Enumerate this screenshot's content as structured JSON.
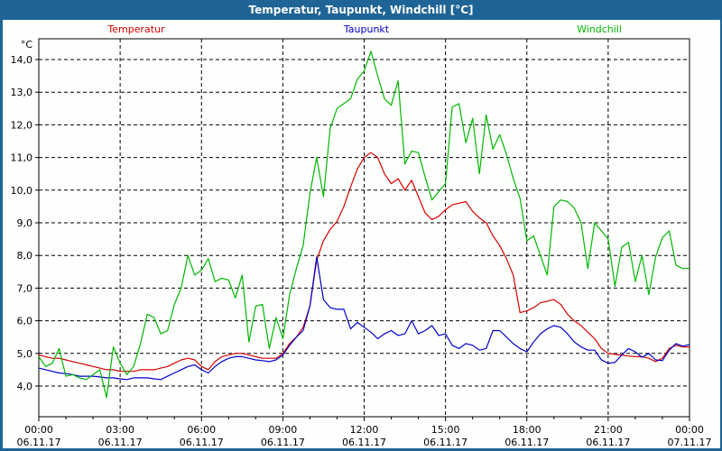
{
  "window": {
    "title": "Temperatur, Taupunkt, Windchill [°C]"
  },
  "colors": {
    "frame_blue": "#1e6496",
    "temperatur": "#d80000",
    "taupunkt": "#0000cd",
    "windchill": "#00b800",
    "axis": "#000000"
  },
  "chart_data": {
    "type": "line",
    "title": "Temperatur, Taupunkt, Windchill [°C]",
    "unit": "°C",
    "start_time": "00:00 06.11.17",
    "end_time": "00:00 07.11.17",
    "interval_minutes": 15,
    "ylim": [
      4,
      14
    ],
    "grid": "dashed",
    "legend_position": "top",
    "y_ticks": [
      {
        "value": 4,
        "label": "4,0"
      },
      {
        "value": 5,
        "label": "5,0"
      },
      {
        "value": 6,
        "label": "6,0"
      },
      {
        "value": 7,
        "label": "7,0"
      },
      {
        "value": 8,
        "label": "8,0"
      },
      {
        "value": 9,
        "label": "9,0"
      },
      {
        "value": 10,
        "label": "10,0"
      },
      {
        "value": 11,
        "label": "11,0"
      },
      {
        "value": 12,
        "label": "12,0"
      },
      {
        "value": 13,
        "label": "13,0"
      },
      {
        "value": 14,
        "label": "14,0"
      }
    ],
    "x_ticks": [
      {
        "hour": 0,
        "time": "00:00",
        "date": "06.11.17"
      },
      {
        "hour": 3,
        "time": "03:00",
        "date": "06.11.17"
      },
      {
        "hour": 6,
        "time": "06:00",
        "date": "06.11.17"
      },
      {
        "hour": 9,
        "time": "09:00",
        "date": "06.11.17"
      },
      {
        "hour": 12,
        "time": "12:00",
        "date": "06.11.17"
      },
      {
        "hour": 15,
        "time": "15:00",
        "date": "06.11.17"
      },
      {
        "hour": 18,
        "time": "18:00",
        "date": "06.11.17"
      },
      {
        "hour": 21,
        "time": "21:00",
        "date": "06.11.17"
      },
      {
        "hour": 24,
        "time": "00:00",
        "date": "07.11.17"
      }
    ],
    "series": [
      {
        "name": "Temperatur",
        "color": "#d80000",
        "values": [
          4.95,
          4.9,
          4.85,
          4.85,
          4.8,
          4.75,
          4.7,
          4.65,
          4.6,
          4.55,
          4.5,
          4.5,
          4.45,
          4.45,
          4.45,
          4.5,
          4.5,
          4.5,
          4.55,
          4.6,
          4.7,
          4.8,
          4.85,
          4.8,
          4.6,
          4.5,
          4.75,
          4.9,
          4.95,
          5.0,
          5.0,
          4.95,
          4.9,
          4.85,
          4.85,
          4.85,
          5.0,
          5.3,
          5.5,
          5.8,
          6.45,
          7.85,
          8.45,
          8.8,
          9.05,
          9.5,
          10.1,
          10.65,
          11.0,
          11.15,
          11.0,
          10.5,
          10.2,
          10.35,
          10.0,
          10.3,
          9.8,
          9.3,
          9.1,
          9.2,
          9.4,
          9.55,
          9.6,
          9.65,
          9.35,
          9.15,
          9.0,
          8.6,
          8.3,
          7.9,
          7.4,
          6.25,
          6.3,
          6.4,
          6.55,
          6.6,
          6.65,
          6.5,
          6.2,
          6.0,
          5.85,
          5.65,
          5.45,
          5.15,
          5.0,
          4.97,
          4.95,
          4.92,
          4.9,
          4.9,
          4.85,
          4.75,
          4.85,
          5.15,
          5.25,
          5.2,
          5.2
        ]
      },
      {
        "name": "Taupunkt",
        "color": "#0000cd",
        "values": [
          4.55,
          4.5,
          4.45,
          4.4,
          4.38,
          4.35,
          4.3,
          4.3,
          4.3,
          4.28,
          4.25,
          4.25,
          4.22,
          4.2,
          4.25,
          4.25,
          4.25,
          4.22,
          4.2,
          4.3,
          4.4,
          4.5,
          4.6,
          4.65,
          4.5,
          4.4,
          4.6,
          4.75,
          4.85,
          4.9,
          4.9,
          4.85,
          4.8,
          4.78,
          4.75,
          4.8,
          4.95,
          5.25,
          5.5,
          5.7,
          6.45,
          7.95,
          6.65,
          6.4,
          6.35,
          6.35,
          5.75,
          5.95,
          5.8,
          5.65,
          5.45,
          5.6,
          5.7,
          5.55,
          5.6,
          6.0,
          5.6,
          5.7,
          5.85,
          5.55,
          5.6,
          5.25,
          5.15,
          5.3,
          5.25,
          5.1,
          5.15,
          5.7,
          5.7,
          5.5,
          5.3,
          5.15,
          5.05,
          5.35,
          5.6,
          5.75,
          5.85,
          5.8,
          5.6,
          5.35,
          5.2,
          5.1,
          5.1,
          4.8,
          4.7,
          4.72,
          4.95,
          5.15,
          5.05,
          4.88,
          5.0,
          4.8,
          4.78,
          5.1,
          5.3,
          5.22,
          5.27
        ]
      },
      {
        "name": "Windchill",
        "color": "#00b800",
        "values": [
          4.9,
          4.6,
          4.7,
          5.15,
          4.3,
          4.35,
          4.25,
          4.2,
          4.35,
          4.5,
          3.65,
          5.2,
          4.7,
          4.35,
          4.6,
          5.3,
          6.2,
          6.1,
          5.6,
          5.7,
          6.5,
          7.0,
          8.0,
          7.4,
          7.55,
          7.9,
          7.2,
          7.3,
          7.25,
          6.7,
          7.4,
          5.35,
          6.45,
          6.5,
          5.15,
          6.1,
          5.45,
          6.8,
          7.6,
          8.3,
          9.9,
          11.0,
          9.8,
          11.9,
          12.5,
          12.65,
          12.8,
          13.4,
          13.65,
          14.25,
          13.5,
          12.8,
          12.6,
          13.35,
          10.8,
          11.2,
          11.15,
          10.4,
          9.7,
          9.95,
          10.2,
          12.55,
          12.65,
          11.45,
          12.2,
          10.5,
          12.3,
          11.25,
          11.7,
          11.1,
          10.35,
          9.75,
          8.45,
          8.6,
          8.0,
          7.4,
          9.5,
          9.7,
          9.65,
          9.45,
          9.0,
          7.6,
          9.0,
          8.75,
          8.5,
          7.05,
          8.25,
          8.4,
          7.2,
          8.0,
          6.8,
          7.95,
          8.55,
          8.75,
          7.7,
          7.6,
          7.6
        ]
      }
    ]
  }
}
